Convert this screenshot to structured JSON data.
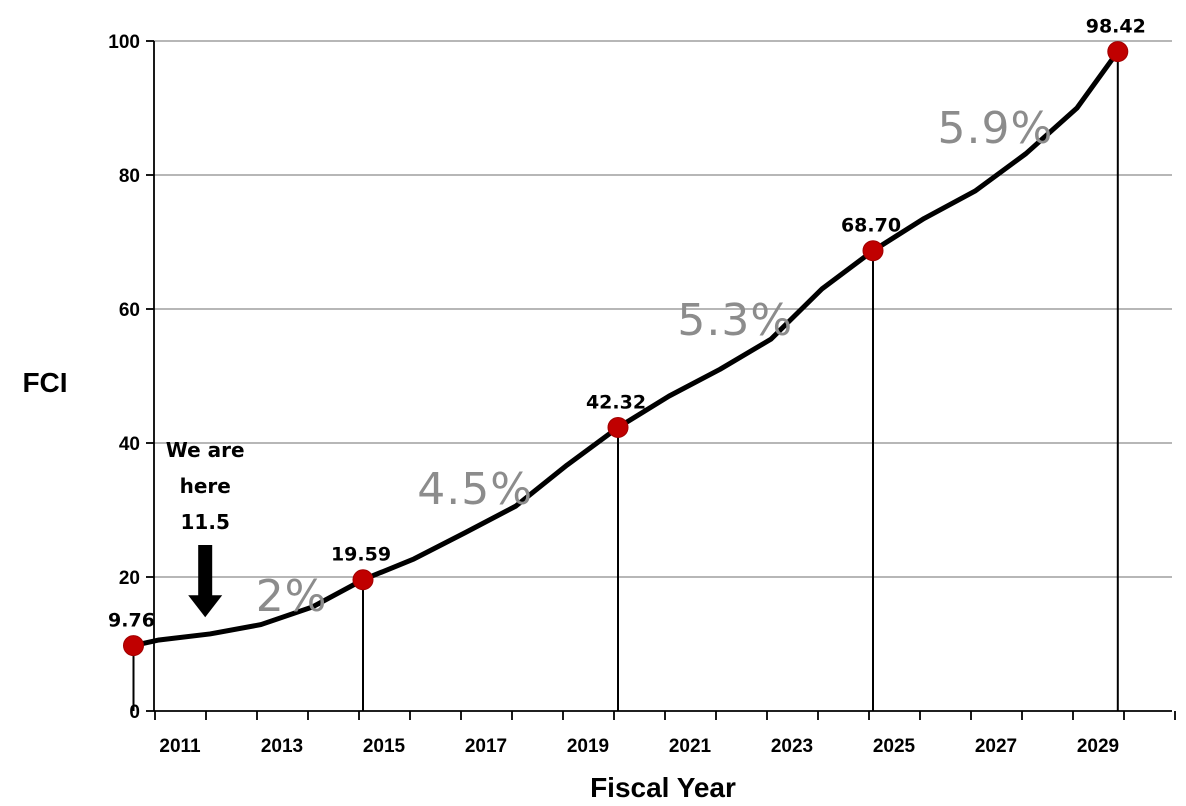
{
  "chart_data": {
    "type": "line",
    "title": "",
    "xlabel": "Fiscal Year",
    "ylabel": "FCI",
    "xlim": [
      2010,
      2030.6
    ],
    "ylim": [
      0,
      100
    ],
    "y_ticks": [
      0,
      20,
      40,
      60,
      80,
      100
    ],
    "x_ticks": [
      2011,
      2013,
      2015,
      2017,
      2019,
      2021,
      2023,
      2025,
      2027,
      2029
    ],
    "grid": "horizontal",
    "legend": "none",
    "colors": {
      "line": "#000000",
      "marker": "#c00000",
      "grid": "#8c8c8c",
      "rate_text": "#8c8c8c"
    },
    "series": [
      {
        "x": [
          2010.5,
          2011,
          2012,
          2013,
          2014,
          2015,
          2016,
          2017,
          2018,
          2019,
          2020,
          2021,
          2022,
          2023,
          2024,
          2025,
          2026,
          2027,
          2028,
          2029,
          2029.8
        ],
        "values": [
          9.76,
          10.6,
          11.5,
          12.9,
          15.5,
          19.59,
          22.7,
          26.6,
          30.6,
          36.7,
          42.32,
          47.0,
          51.0,
          55.5,
          63.0,
          68.7,
          73.5,
          77.6,
          83.2,
          90.0,
          98.42
        ]
      }
    ],
    "markers": [
      {
        "x": 2010.5,
        "y": 9.76,
        "label": "9.76"
      },
      {
        "x": 2015.0,
        "y": 19.59,
        "label": "19.59"
      },
      {
        "x": 2020.0,
        "y": 42.32,
        "label": "42.32"
      },
      {
        "x": 2025.0,
        "y": 68.7,
        "label": "68.70"
      },
      {
        "x": 2029.8,
        "y": 98.42,
        "label": "98.42"
      }
    ],
    "growth_rates": [
      {
        "text": "2%",
        "x": 2013.6,
        "y": 17.3
      },
      {
        "text": "4.5%",
        "x": 2017.2,
        "y": 33.3
      },
      {
        "text": "5.3%",
        "x": 2022.3,
        "y": 58.5
      },
      {
        "text": "5.9%",
        "x": 2027.4,
        "y": 87.2
      }
    ],
    "annotation": {
      "lines": [
        "We are",
        "here",
        "11.5"
      ],
      "x": 2012.2,
      "arrow_to_y": 12.8
    }
  }
}
